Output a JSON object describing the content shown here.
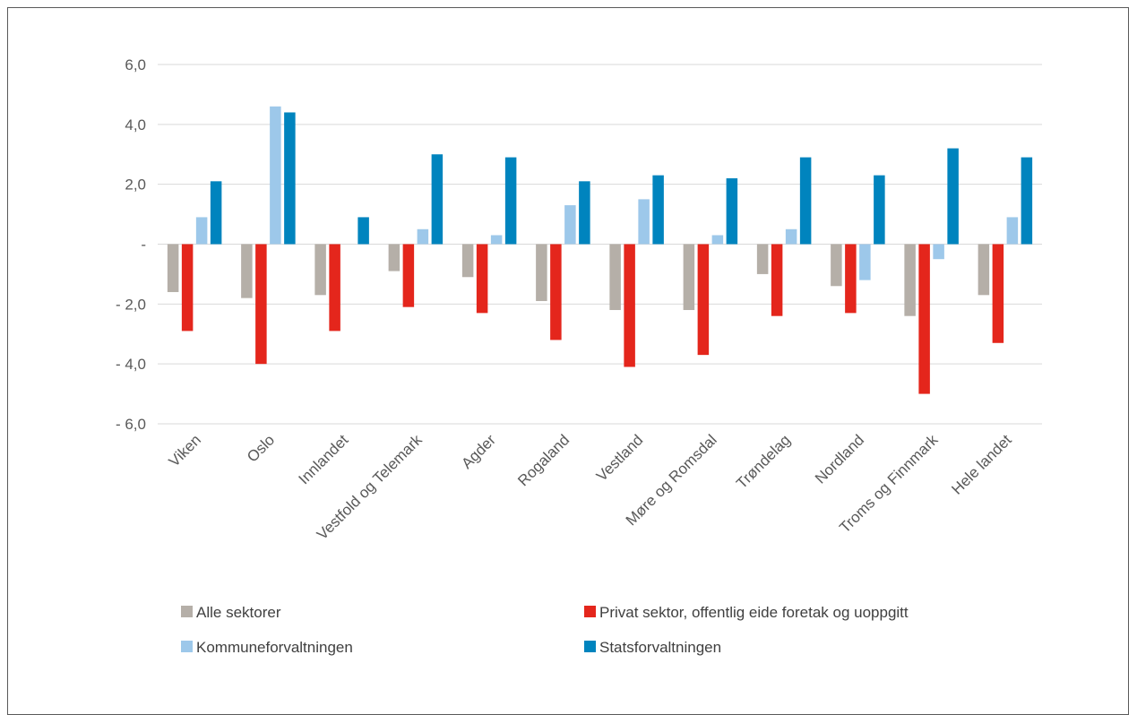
{
  "chart_data": {
    "type": "bar",
    "categories": [
      "Viken",
      "Oslo",
      "Innlandet",
      "Vestfold og Telemark",
      "Agder",
      "Rogaland",
      "Vestland",
      "Møre og Romsdal",
      "Trøndelag",
      "Nordland",
      "Troms og Finnmark",
      "Hele landet"
    ],
    "series": [
      {
        "name": "Alle sektorer",
        "color": "#b5afa8",
        "values": [
          -1.6,
          -1.8,
          -1.7,
          -0.9,
          -1.1,
          -1.9,
          -2.2,
          -2.2,
          -1.0,
          -1.4,
          -2.4,
          -1.7
        ]
      },
      {
        "name": "Privat sektor, offentlig eide foretak og uoppgitt",
        "color": "#e4261c",
        "values": [
          -2.9,
          -4.0,
          -2.9,
          -2.1,
          -2.3,
          -3.2,
          -4.1,
          -3.7,
          -2.4,
          -2.3,
          -5.0,
          -3.3
        ]
      },
      {
        "name": "Kommuneforvaltningen",
        "color": "#9dc8ea",
        "values": [
          0.9,
          4.6,
          0.0,
          0.5,
          0.3,
          1.3,
          1.5,
          0.3,
          0.5,
          -1.2,
          -0.5,
          0.9
        ]
      },
      {
        "name": "Statsforvaltningen",
        "color": "#0084be",
        "values": [
          2.1,
          4.4,
          0.9,
          3.0,
          2.9,
          2.1,
          2.3,
          2.2,
          2.9,
          2.3,
          3.2,
          2.9
        ]
      }
    ],
    "yticks": [
      6,
      4,
      2,
      0,
      -2,
      -4,
      -6
    ],
    "ytick_labels": [
      "6,0",
      "4,0",
      "2,0",
      "-",
      "- 2,0",
      "- 4,0",
      "- 6,0"
    ],
    "ylim": [
      -6,
      6
    ],
    "grid": true,
    "legend_placement": "bottom",
    "title": "",
    "xlabel": "",
    "ylabel": ""
  }
}
